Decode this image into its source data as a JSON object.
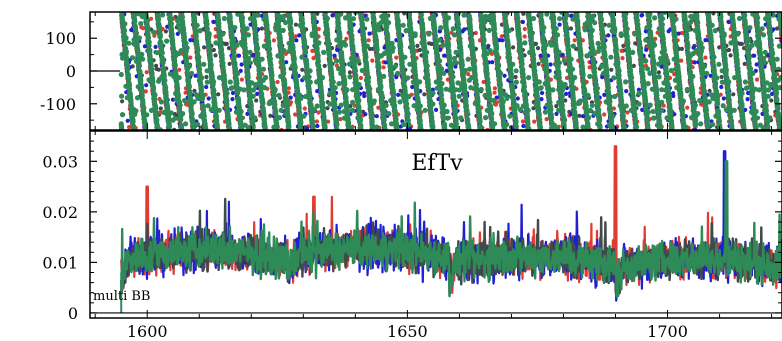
{
  "chart_data": [
    {
      "type": "scatter",
      "title": "",
      "xlabel": "",
      "ylabel": "",
      "xlim": [
        1589,
        1722
      ],
      "ylim": [
        -180,
        180
      ],
      "y_ticks": [
        100,
        0,
        -100
      ],
      "y_tick_labels": [
        "100",
        "0",
        "-100"
      ],
      "grid": false,
      "data_start_x": 1595,
      "pattern": "sawtooth phase wrapping between -180 and 180, period about 2.3 units",
      "series": [
        {
          "color": "#e03c31"
        },
        {
          "color": "#1f1fd6"
        },
        {
          "color": "#3f4a4a"
        },
        {
          "color": "#2e8b57"
        }
      ]
    },
    {
      "type": "line",
      "title": "EfTv",
      "annotation": "multi BB",
      "xlabel": "",
      "ylabel": "",
      "xlim": [
        1589,
        1722
      ],
      "ylim": [
        -0.001,
        0.036
      ],
      "x_ticks": [
        1600,
        1650,
        1700
      ],
      "x_tick_labels": [
        "1600",
        "1650",
        "1700"
      ],
      "y_ticks": [
        0.03,
        0.02,
        0.01,
        0
      ],
      "y_tick_labels": [
        "0.03",
        "0.02",
        "0.01",
        "0"
      ],
      "grid": false,
      "data_start_x": 1595,
      "baseline_level": 0.009,
      "segments": [
        {
          "x": [
            1595,
            1627
          ],
          "level": 0.0105
        },
        {
          "x": [
            1627,
            1658
          ],
          "level": 0.011
        },
        {
          "x": [
            1658,
            1690
          ],
          "level": 0.0095
        },
        {
          "x": [
            1690,
            1722
          ],
          "level": 0.009
        }
      ],
      "spikes": [
        {
          "x": 1600,
          "y": 0.025,
          "series": "red"
        },
        {
          "x": 1632,
          "y": 0.023,
          "series": "red"
        },
        {
          "x": 1690,
          "y": 0.033,
          "series": "red"
        },
        {
          "x": 1711,
          "y": 0.032,
          "series": "blue"
        },
        {
          "x": 1711.3,
          "y": 0.03,
          "series": "green"
        }
      ],
      "series": [
        {
          "color": "#e03c31"
        },
        {
          "color": "#1f1fd6"
        },
        {
          "color": "#3f4a4a"
        },
        {
          "color": "#2e8b57"
        }
      ]
    }
  ]
}
